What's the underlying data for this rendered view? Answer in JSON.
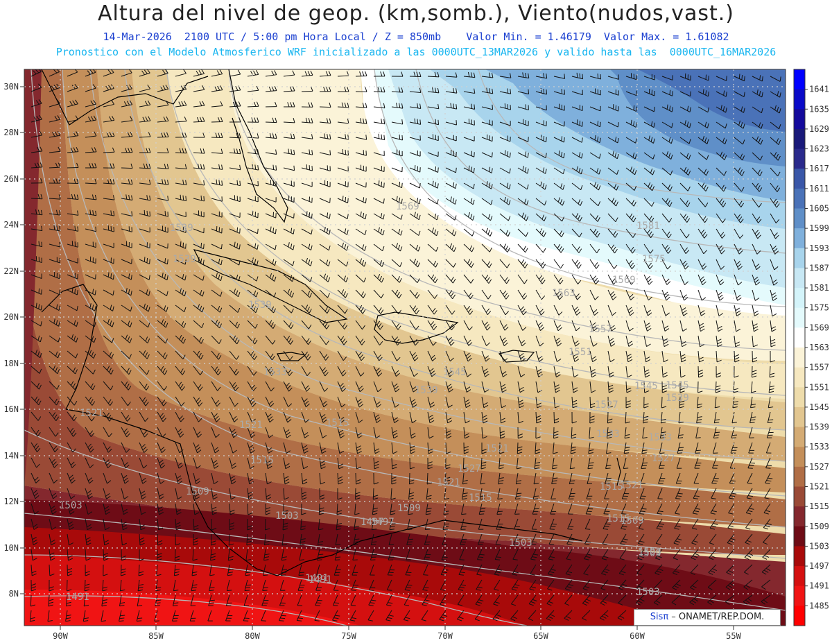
{
  "header": {
    "title": "Altura del nivel de geop. (km,somb.), Viento(nudos,vast.)",
    "subtitle1": "14-Mar-2026  2100 UTC / 5:00 pm Hora Local / Z = 850mb    Valor Min. = 1.46179  Valor Max. = 1.61082",
    "subtitle2": "Pronostico con el Modelo Atmosferico WRF inicializado a las 0000UTC_13MAR2026 y valido hasta las  0000UTC_16MAR2026"
  },
  "map": {
    "lon_labels": [
      "90W",
      "85W",
      "80W",
      "75W",
      "70W",
      "65W",
      "60W",
      "55W"
    ],
    "lat_labels": [
      "30N",
      "28N",
      "26N",
      "24N",
      "22N",
      "20N",
      "18N",
      "16N",
      "14N",
      "12N",
      "10N",
      "8N"
    ],
    "contour_labels": [
      "1569",
      "1581",
      "1575",
      "1569",
      "1563",
      "1557",
      "1551",
      "1545",
      "1539",
      "1533",
      "1527",
      "1521",
      "1515",
      "1509",
      "1503",
      "1497",
      "1491",
      "1539",
      "1539",
      "1539",
      "1533",
      "1545",
      "1539",
      "1515",
      "1521",
      "1521",
      "1515",
      "1509",
      "1503",
      "1503",
      "1497",
      "1491",
      "1491",
      "1509",
      "1503",
      "1515",
      "1521",
      "1527",
      "1533",
      "1545",
      "1527",
      "1521",
      "1515",
      "1509",
      "1503"
    ]
  },
  "colorbar": {
    "levels": [
      "1641",
      "1635",
      "1629",
      "1623",
      "1617",
      "1611",
      "1605",
      "1599",
      "1593",
      "1587",
      "1581",
      "1575",
      "1569",
      "1563",
      "1557",
      "1551",
      "1545",
      "1539",
      "1533",
      "1527",
      "1521",
      "1515",
      "1509",
      "1503",
      "1497",
      "1491",
      "1485"
    ],
    "colors": [
      "#0000ff",
      "#0a0ac8",
      "#140a9c",
      "#1a1a7a",
      "#2a2a8c",
      "#3a57a8",
      "#4a72b8",
      "#5f8fc8",
      "#7fb0dc",
      "#a8d4ec",
      "#c8e8f4",
      "#d4f4fa",
      "#e4fafc",
      "#ffffff",
      "#fbf3d8",
      "#f6e8c0",
      "#eedcab",
      "#e2c690",
      "#d4ab74",
      "#c48f5a",
      "#b06e46",
      "#9a4a36",
      "#84282e",
      "#6e0c16",
      "#a80a0a",
      "#d41010",
      "#f01414",
      "#ff0000"
    ]
  },
  "credit": {
    "sis": "Sisπ",
    "rest": " – ONAMET/REP.DOM."
  }
}
